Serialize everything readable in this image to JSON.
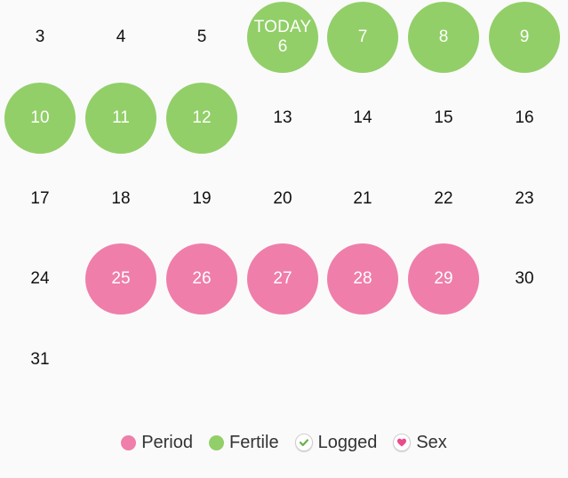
{
  "colors": {
    "period": "#ef7eaa",
    "fertile": "#92cf68",
    "logged_check": "#6ab04c",
    "sex_heart": "#e84c8b"
  },
  "calendar": {
    "today_label": "TODAY",
    "days": [
      {
        "day": "3",
        "type": "plain"
      },
      {
        "day": "4",
        "type": "plain"
      },
      {
        "day": "5",
        "type": "plain"
      },
      {
        "day": "6",
        "type": "fertile",
        "today": true
      },
      {
        "day": "7",
        "type": "fertile"
      },
      {
        "day": "8",
        "type": "fertile"
      },
      {
        "day": "9",
        "type": "fertile"
      },
      {
        "day": "10",
        "type": "fertile"
      },
      {
        "day": "11",
        "type": "fertile"
      },
      {
        "day": "12",
        "type": "fertile"
      },
      {
        "day": "13",
        "type": "plain"
      },
      {
        "day": "14",
        "type": "plain"
      },
      {
        "day": "15",
        "type": "plain"
      },
      {
        "day": "16",
        "type": "plain"
      },
      {
        "day": "17",
        "type": "plain"
      },
      {
        "day": "18",
        "type": "plain"
      },
      {
        "day": "19",
        "type": "plain"
      },
      {
        "day": "20",
        "type": "plain"
      },
      {
        "day": "21",
        "type": "plain"
      },
      {
        "day": "22",
        "type": "plain"
      },
      {
        "day": "23",
        "type": "plain"
      },
      {
        "day": "24",
        "type": "plain"
      },
      {
        "day": "25",
        "type": "period"
      },
      {
        "day": "26",
        "type": "period"
      },
      {
        "day": "27",
        "type": "period"
      },
      {
        "day": "28",
        "type": "period"
      },
      {
        "day": "29",
        "type": "period"
      },
      {
        "day": "30",
        "type": "plain"
      },
      {
        "day": "31",
        "type": "plain"
      }
    ]
  },
  "legend": {
    "period_label": "Period",
    "fertile_label": "Fertile",
    "logged_label": "Logged",
    "sex_label": "Sex",
    "period_icon": "period-dot",
    "fertile_icon": "fertile-dot",
    "logged_icon": "checkmark-icon",
    "sex_icon": "heart-icon"
  }
}
